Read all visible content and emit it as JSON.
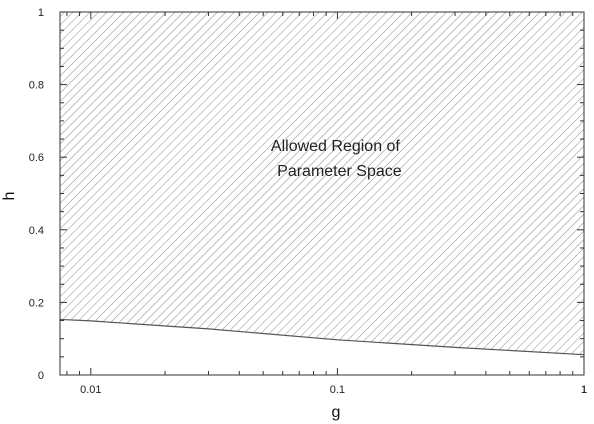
{
  "chart_data": {
    "type": "area",
    "title": "",
    "xlabel": "g",
    "ylabel": "h",
    "x_scale": "log",
    "xlim": [
      0.0075,
      1
    ],
    "ylim": [
      0,
      1
    ],
    "x_ticks": [
      {
        "value": 0.01,
        "label": "0.01"
      },
      {
        "value": 0.1,
        "label": "0.1"
      },
      {
        "value": 1,
        "label": "1"
      }
    ],
    "y_ticks": [
      {
        "value": 0,
        "label": "0"
      },
      {
        "value": 0.2,
        "label": "0.2"
      },
      {
        "value": 0.4,
        "label": "0.4"
      },
      {
        "value": 0.6,
        "label": "0.6"
      },
      {
        "value": 0.8,
        "label": "0.8"
      },
      {
        "value": 1,
        "label": "1"
      }
    ],
    "corner_label": "1",
    "boundary": {
      "x": [
        0.0075,
        0.01,
        0.03,
        0.1,
        0.3,
        1
      ],
      "y": [
        0.153,
        0.149,
        0.127,
        0.097,
        0.076,
        0.056
      ]
    },
    "region_fill": "hatched",
    "annotation": {
      "lines": [
        "Allowed Region of",
        "Parameter Space"
      ],
      "x": 0.1,
      "y": 0.59
    },
    "grid": false,
    "colors": {
      "hatch": "#8a8a8a",
      "boundary": "#555555",
      "axis": "#333333"
    }
  }
}
